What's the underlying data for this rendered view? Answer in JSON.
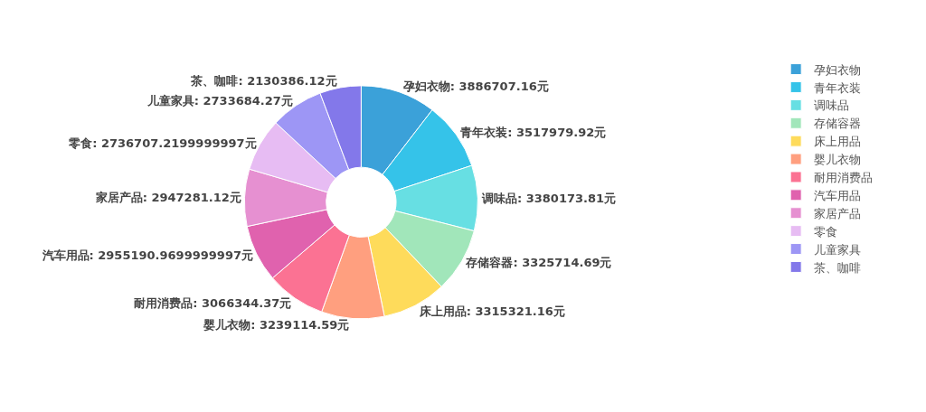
{
  "chart_data": {
    "type": "donut",
    "categories": [
      "孕妇衣物",
      "青年衣装",
      "调味品",
      "存储容器",
      "床上用品",
      "婴儿衣物",
      "耐用消费品",
      "汽车用品",
      "家居产品",
      "零食",
      "儿童家具",
      "茶、咖啡"
    ],
    "values": [
      3886707.16,
      3517979.92,
      3380173.81,
      3325714.69,
      3315321.16,
      3239114.59,
      3066344.37,
      2955190.9699999997,
      2947281.12,
      2736707.2199999997,
      2733684.27,
      2130386.12
    ],
    "value_labels": [
      "孕妇衣物: 3886707.16元",
      "青年衣装: 3517979.92元",
      "调味品: 3380173.81元",
      "存储容器: 3325714.69元",
      "床上用品: 3315321.16元",
      "婴儿衣物: 3239114.59元",
      "耐用消费品: 3066344.37元",
      "汽车用品: 2955190.9699999997元",
      "家居产品: 2947281.12元",
      "零食: 2736707.2199999997元",
      "儿童家具: 2733684.27元",
      "茶、咖啡: 2130386.12元"
    ],
    "colors": [
      "#3ba1d9",
      "#35c3e9",
      "#67dfe3",
      "#a1e6ba",
      "#fedb5b",
      "#ff9f7f",
      "#fb7293",
      "#e062ae",
      "#e690d1",
      "#e7bcf3",
      "#9d96f5",
      "#8378ea"
    ],
    "legend": "right"
  }
}
